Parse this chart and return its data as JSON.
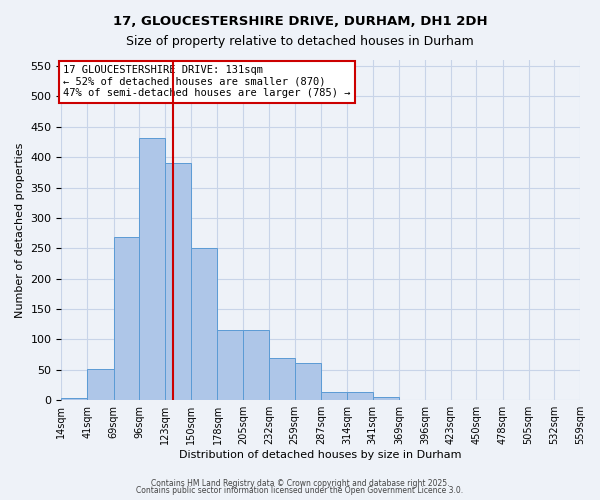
{
  "title1": "17, GLOUCESTERSHIRE DRIVE, DURHAM, DH1 2DH",
  "title2": "Size of property relative to detached houses in Durham",
  "xlabel": "Distribution of detached houses by size in Durham",
  "ylabel": "Number of detached properties",
  "bar_labels": [
    "14sqm",
    "41sqm",
    "69sqm",
    "96sqm",
    "123sqm",
    "150sqm",
    "178sqm",
    "205sqm",
    "232sqm",
    "259sqm",
    "287sqm",
    "314sqm",
    "341sqm",
    "369sqm",
    "396sqm",
    "423sqm",
    "450sqm",
    "478sqm",
    "505sqm",
    "532sqm",
    "559sqm"
  ],
  "bin_edges": [
    14,
    41,
    69,
    96,
    123,
    150,
    178,
    205,
    232,
    259,
    287,
    314,
    341,
    369,
    396,
    423,
    450,
    478,
    505,
    532,
    559
  ],
  "bar_heights": [
    3,
    51,
    268,
    432,
    390,
    250,
    116,
    116,
    69,
    61,
    13,
    13,
    5,
    1,
    1,
    0,
    0,
    1,
    0,
    0
  ],
  "bar_color": "#aec6e8",
  "bar_edgecolor": "#5b9bd5",
  "grid_color": "#c8d4e8",
  "bg_color": "#eef2f8",
  "vline_x": 131,
  "vline_color": "#cc0000",
  "annotation_text": "17 GLOUCESTERSHIRE DRIVE: 131sqm\n← 52% of detached houses are smaller (870)\n47% of semi-detached houses are larger (785) →",
  "annotation_box_color": "#ffffff",
  "annotation_border_color": "#cc0000",
  "ylim": [
    0,
    560
  ],
  "yticks": [
    0,
    50,
    100,
    150,
    200,
    250,
    300,
    350,
    400,
    450,
    500,
    550
  ],
  "footnote1": "Contains HM Land Registry data © Crown copyright and database right 2025.",
  "footnote2": "Contains public sector information licensed under the Open Government Licence 3.0."
}
